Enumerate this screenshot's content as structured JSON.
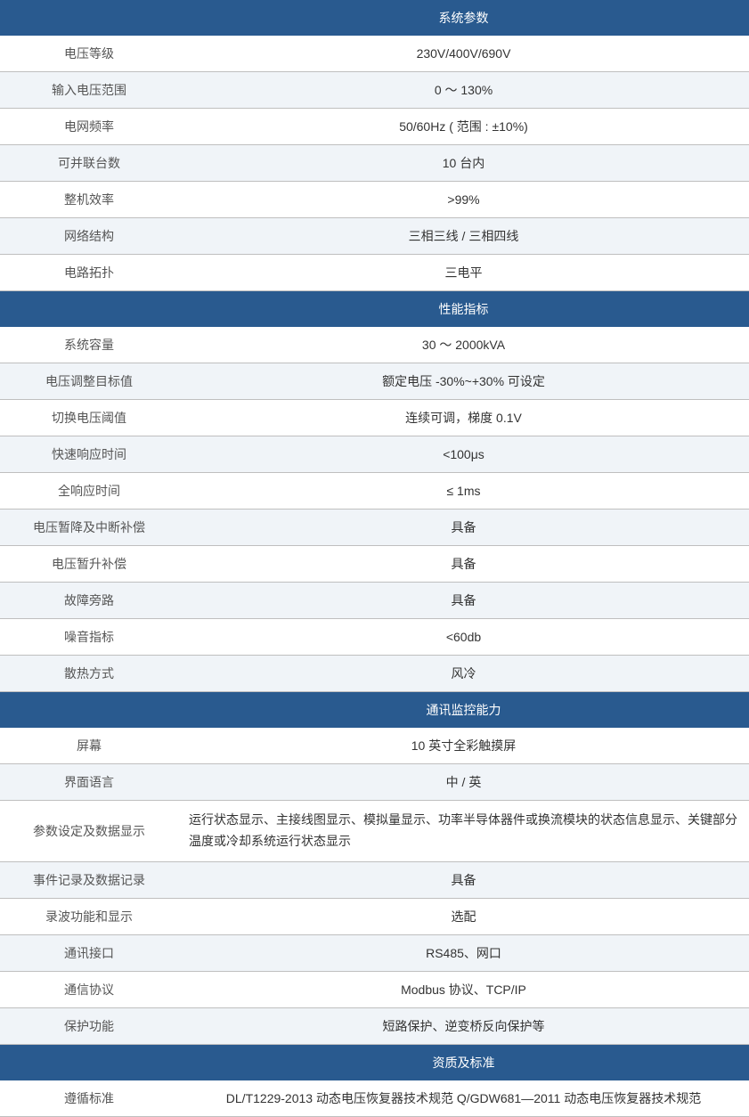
{
  "table": {
    "header_bg": "#295a8f",
    "header_text_color": "#ffffff",
    "row_bg": "#ffffff",
    "row_alt_bg": "#f0f4f8",
    "border_color": "#bfbfbf",
    "label_color": "#555555",
    "value_color": "#333333",
    "font_size": 14,
    "label_col_width": 200
  },
  "sections": {
    "s0": {
      "title": "系统参数",
      "rows": {
        "r0": {
          "label": "电压等级",
          "value": "230V/400V/690V"
        },
        "r1": {
          "label": "输入电压范围",
          "value": "0 ～ 130%"
        },
        "r2": {
          "label": "电网频率",
          "value": "50/60Hz ( 范围 : ±10%)"
        },
        "r3": {
          "label": "可并联台数",
          "value": "10 台内"
        },
        "r4": {
          "label": "整机效率",
          "value": ">99%"
        },
        "r5": {
          "label": "网络结构",
          "value": "三相三线 / 三相四线"
        },
        "r6": {
          "label": "电路拓扑",
          "value": "三电平"
        }
      }
    },
    "s1": {
      "title": "性能指标",
      "rows": {
        "r0": {
          "label": "系统容量",
          "value": "30 ～ 2000kVA"
        },
        "r1": {
          "label": "电压调整目标值",
          "value": "额定电压 -30%~+30% 可设定"
        },
        "r2": {
          "label": "切换电压阈值",
          "value": "连续可调，梯度 0.1V"
        },
        "r3": {
          "label": "快速响应时间",
          "value": "<100μs"
        },
        "r4": {
          "label": "全响应时间",
          "value": "≤ 1ms"
        },
        "r5": {
          "label": "电压暂降及中断补偿",
          "value": "具备"
        },
        "r6": {
          "label": "电压暂升补偿",
          "value": "具备"
        },
        "r7": {
          "label": "故障旁路",
          "value": "具备"
        },
        "r8": {
          "label": "噪音指标",
          "value": "<60db"
        },
        "r9": {
          "label": "散热方式",
          "value": "风冷"
        }
      }
    },
    "s2": {
      "title": "通讯监控能力",
      "rows": {
        "r0": {
          "label": "屏幕",
          "value": "10 英寸全彩触摸屏"
        },
        "r1": {
          "label": "界面语言",
          "value": "中 / 英"
        },
        "r2": {
          "label": "参数设定及数据显示",
          "value": "运行状态显示、主接线图显示、模拟量显示、功率半导体器件或换流模块的状态信息显示、关键部分温度或冷却系统运行状态显示"
        },
        "r3": {
          "label": "事件记录及数据记录",
          "value": "具备"
        },
        "r4": {
          "label": "录波功能和显示",
          "value": "选配"
        },
        "r5": {
          "label": "通讯接口",
          "value": "RS485、网口"
        },
        "r6": {
          "label": "通信协议",
          "value": "Modbus 协议、TCP/IP"
        },
        "r7": {
          "label": "保护功能",
          "value": "短路保护、逆变桥反向保护等"
        }
      }
    },
    "s3": {
      "title": "资质及标准",
      "rows": {
        "r0": {
          "label": "遵循标准",
          "value": "DL/T1229-2013 动态电压恢复器技术规范 Q/GDW681—2011 动态电压恢复器技术规范"
        }
      }
    }
  }
}
